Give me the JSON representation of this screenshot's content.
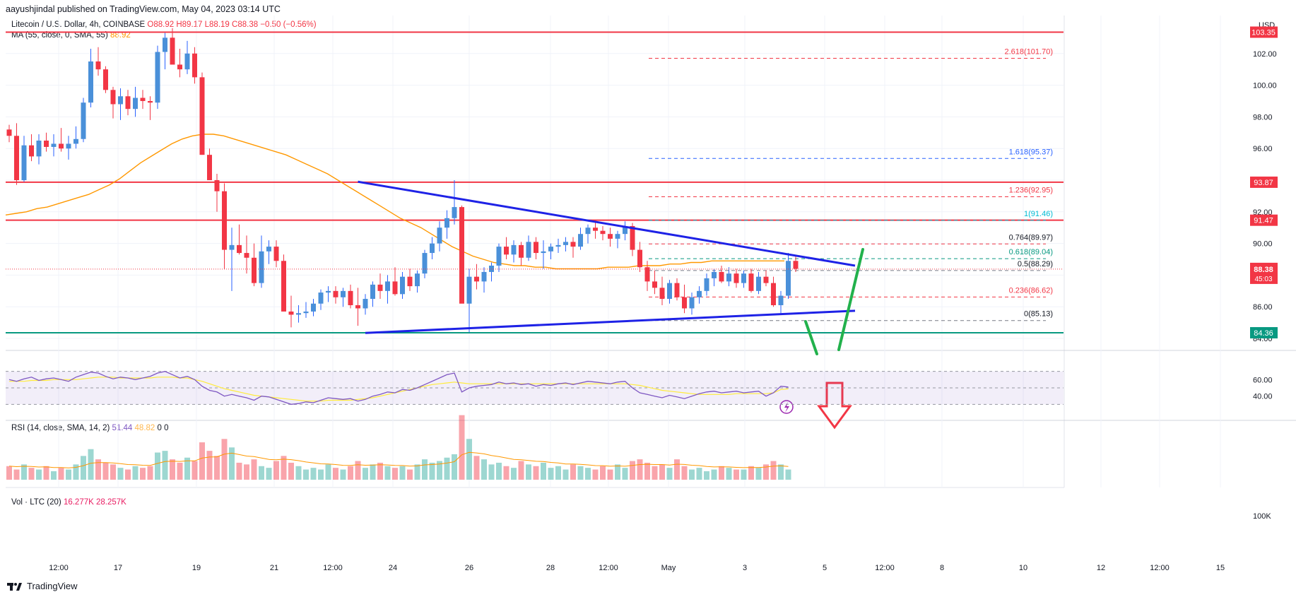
{
  "header": {
    "publisher_line": "aayushjindal published on TradingView.com, May 04, 2023 03:14 UTC"
  },
  "symbol": {
    "title": "Litecoin / U.S. Dollar, 4h, COINBASE",
    "open": "O88.92",
    "high": "H89.17",
    "low": "L88.19",
    "close": "C88.38",
    "change": "−0.50 (−0.56%)",
    "ma_label": "MA (55, close, 0, SMA, 55)",
    "ma_value": "88.92",
    "currency": "USD"
  },
  "rsi_legend": {
    "label": "RSI (14, close, SMA, 14, 2)",
    "value": "51.44",
    "ma_value": "48.82",
    "extra1": "0",
    "extra2": "0"
  },
  "vol_legend": {
    "label": "Vol · LTC (20)",
    "value": "16.277K",
    "ma_value": "28.257K"
  },
  "footer": {
    "brand": "TradingView"
  },
  "colors": {
    "up": "#26a69a",
    "up_candle": "#2962ff",
    "down": "#f23645",
    "ma": "#ff9800",
    "trend": "#1e22e6",
    "support": "#089981",
    "resistance": "#f23645",
    "rsi": "#7e57c2",
    "arrow_green": "#22b14c"
  },
  "chart_data": {
    "type": "candlestick",
    "price_axis": {
      "ticks": [
        102,
        100,
        98,
        96,
        94,
        92,
        90,
        88,
        86,
        84
      ],
      "tick_labels": [
        "102.00",
        "100.00",
        "98.00",
        "96.00",
        "94.00",
        "92.00",
        "90.00",
        "88.00",
        "86.00",
        "84.00"
      ],
      "range": [
        83.6,
        104.4
      ]
    },
    "time_axis": {
      "labels": [
        "12:00",
        "17",
        "19",
        "21",
        "12:00",
        "24",
        "26",
        "28",
        "12:00",
        "May",
        "3",
        "5",
        "12:00",
        "8",
        "10",
        "12",
        "12:00",
        "15"
      ]
    },
    "horizontal_levels": [
      {
        "value": 103.35,
        "label": "103.35",
        "kind": "resistance"
      },
      {
        "value": 93.87,
        "label": "93.87",
        "kind": "resistance"
      },
      {
        "value": 91.47,
        "label": "91.47",
        "kind": "resistance"
      },
      {
        "value": 84.36,
        "label": "84.36",
        "kind": "support"
      }
    ],
    "current_price": {
      "value": 88.38,
      "label": "88.38",
      "countdown": "45:03"
    },
    "fibonacci": [
      {
        "ratio": "2.618",
        "value": 101.7,
        "label": "2.618(101.70)"
      },
      {
        "ratio": "1.618",
        "value": 95.37,
        "label": "1.618(95.37)"
      },
      {
        "ratio": "1.236",
        "value": 92.95,
        "label": "1.236(92.95)"
      },
      {
        "ratio": "1",
        "value": 91.46,
        "label": "1(91.46)"
      },
      {
        "ratio": "0.764",
        "value": 89.97,
        "label": "0.764(89.97)"
      },
      {
        "ratio": "0.618",
        "value": 89.04,
        "label": "0.618(89.04)"
      },
      {
        "ratio": "0.5",
        "value": 88.29,
        "label": "0.5(88.29)"
      },
      {
        "ratio": "0.236",
        "value": 86.62,
        "label": "0.236(86.62)"
      },
      {
        "ratio": "0",
        "value": 85.13,
        "label": "0(85.13)"
      }
    ],
    "trendlines": [
      {
        "name": "upper",
        "from": [
          47,
          93.9
        ],
        "to": [
          114,
          88.6
        ]
      },
      {
        "name": "lower",
        "from": [
          48,
          84.35
        ],
        "to": [
          114,
          85.75
        ]
      }
    ],
    "candles_ohlc": [
      [
        97.2,
        97.5,
        96.4,
        96.8
      ],
      [
        96.8,
        97.6,
        93.7,
        94.0
      ],
      [
        94.0,
        96.8,
        93.9,
        96.2
      ],
      [
        96.2,
        96.9,
        95.2,
        95.5
      ],
      [
        95.5,
        96.9,
        95.0,
        96.5
      ],
      [
        96.5,
        97.0,
        95.8,
        96.1
      ],
      [
        96.1,
        96.9,
        95.5,
        96.3
      ],
      [
        96.3,
        97.3,
        95.8,
        96.0
      ],
      [
        96.0,
        96.8,
        95.3,
        96.3
      ],
      [
        96.3,
        97.4,
        96.0,
        96.6
      ],
      [
        96.6,
        99.2,
        96.4,
        98.9
      ],
      [
        98.9,
        102.3,
        98.6,
        101.5
      ],
      [
        101.5,
        102.4,
        100.6,
        101.0
      ],
      [
        101.0,
        101.2,
        99.5,
        99.7
      ],
      [
        99.7,
        99.9,
        97.9,
        98.8
      ],
      [
        98.8,
        99.8,
        97.8,
        99.3
      ],
      [
        99.3,
        99.7,
        98.1,
        98.5
      ],
      [
        98.5,
        99.9,
        98.0,
        99.2
      ],
      [
        99.2,
        99.7,
        98.5,
        99.0
      ],
      [
        99.0,
        99.3,
        97.8,
        98.9
      ],
      [
        98.9,
        102.5,
        98.5,
        102.1
      ],
      [
        102.1,
        103.3,
        101.0,
        103.0
      ],
      [
        103.0,
        103.6,
        101.5,
        101.3
      ],
      [
        101.3,
        102.3,
        100.5,
        101.0
      ],
      [
        101.0,
        102.8,
        100.7,
        102.0
      ],
      [
        102.0,
        102.4,
        100.1,
        100.5
      ],
      [
        100.5,
        100.8,
        95.6,
        95.6
      ],
      [
        95.6,
        96.0,
        94.1,
        94.0
      ],
      [
        94.0,
        94.4,
        92.0,
        93.3
      ],
      [
        93.3,
        93.8,
        88.4,
        89.6
      ],
      [
        89.6,
        91.0,
        87.0,
        89.9
      ],
      [
        89.9,
        91.2,
        89.3,
        89.4
      ],
      [
        89.4,
        90.5,
        88.1,
        89.1
      ],
      [
        89.1,
        90.0,
        87.3,
        87.5
      ],
      [
        87.5,
        90.5,
        87.2,
        89.5
      ],
      [
        89.5,
        90.2,
        88.7,
        89.8
      ],
      [
        89.8,
        90.2,
        88.5,
        88.9
      ],
      [
        88.9,
        89.3,
        86.5,
        85.7
      ],
      [
        85.7,
        86.7,
        84.7,
        85.5
      ],
      [
        85.5,
        86.1,
        85.0,
        85.6
      ],
      [
        85.6,
        86.3,
        85.3,
        85.7
      ],
      [
        85.7,
        86.5,
        85.4,
        86.2
      ],
      [
        86.2,
        87.1,
        85.8,
        86.9
      ],
      [
        86.9,
        87.3,
        86.3,
        87.0
      ],
      [
        87.0,
        87.3,
        86.2,
        86.6
      ],
      [
        86.6,
        87.2,
        86.0,
        87.0
      ],
      [
        87.0,
        87.4,
        85.9,
        86.1
      ],
      [
        86.1,
        87.2,
        84.8,
        85.9
      ],
      [
        85.9,
        86.8,
        85.5,
        86.5
      ],
      [
        86.5,
        87.6,
        86.0,
        87.4
      ],
      [
        87.4,
        88.1,
        86.5,
        87.0
      ],
      [
        87.0,
        88.0,
        86.2,
        87.6
      ],
      [
        87.6,
        88.5,
        86.7,
        86.8
      ],
      [
        86.8,
        88.2,
        86.5,
        87.9
      ],
      [
        87.9,
        88.4,
        87.0,
        87.3
      ],
      [
        87.3,
        88.3,
        86.9,
        88.1
      ],
      [
        88.1,
        89.6,
        87.8,
        89.4
      ],
      [
        89.4,
        90.4,
        89.0,
        90.0
      ],
      [
        90.0,
        91.4,
        89.5,
        91.0
      ],
      [
        91.0,
        92.1,
        90.3,
        91.6
      ],
      [
        91.6,
        94.0,
        91.2,
        92.3
      ],
      [
        92.3,
        92.4,
        86.3,
        86.2
      ],
      [
        86.2,
        88.4,
        84.4,
        87.9
      ],
      [
        87.9,
        88.7,
        87.1,
        87.6
      ],
      [
        87.6,
        88.5,
        86.9,
        88.2
      ],
      [
        88.2,
        88.8,
        87.6,
        88.6
      ],
      [
        88.6,
        90.0,
        88.2,
        89.8
      ],
      [
        89.8,
        90.4,
        89.0,
        89.3
      ],
      [
        89.3,
        90.2,
        88.8,
        89.9
      ],
      [
        89.9,
        90.1,
        88.6,
        89.1
      ],
      [
        89.1,
        90.5,
        88.9,
        90.1
      ],
      [
        90.1,
        90.4,
        89.0,
        89.4
      ],
      [
        89.4,
        90.2,
        88.4,
        89.5
      ],
      [
        89.5,
        90.0,
        89.0,
        89.8
      ],
      [
        89.8,
        90.3,
        89.4,
        89.9
      ],
      [
        89.9,
        90.4,
        89.5,
        90.1
      ],
      [
        90.1,
        90.4,
        89.1,
        89.8
      ],
      [
        89.8,
        91.0,
        89.6,
        90.6
      ],
      [
        90.6,
        91.2,
        90.0,
        91.0
      ],
      [
        91.0,
        91.5,
        90.3,
        90.8
      ],
      [
        90.8,
        91.1,
        90.2,
        90.6
      ],
      [
        90.6,
        91.0,
        89.8,
        90.3
      ],
      [
        90.3,
        90.8,
        89.7,
        90.6
      ],
      [
        90.6,
        91.4,
        90.2,
        91.1
      ],
      [
        91.1,
        91.3,
        89.2,
        89.6
      ],
      [
        89.6,
        90.1,
        88.2,
        88.5
      ],
      [
        88.5,
        88.9,
        87.0,
        87.6
      ],
      [
        87.6,
        88.3,
        86.8,
        87.2
      ],
      [
        87.2,
        87.9,
        86.1,
        86.5
      ],
      [
        86.5,
        87.7,
        86.2,
        87.5
      ],
      [
        87.5,
        87.8,
        86.4,
        86.6
      ],
      [
        86.6,
        87.4,
        85.6,
        85.9
      ],
      [
        85.9,
        86.9,
        85.5,
        86.6
      ],
      [
        86.6,
        87.3,
        86.2,
        87.0
      ],
      [
        87.0,
        88.1,
        86.7,
        87.8
      ],
      [
        87.8,
        88.4,
        87.3,
        88.2
      ],
      [
        88.2,
        88.6,
        87.5,
        87.6
      ],
      [
        87.6,
        88.5,
        87.3,
        88.1
      ],
      [
        88.1,
        88.4,
        87.2,
        87.5
      ],
      [
        87.5,
        88.3,
        87.2,
        88.1
      ],
      [
        88.1,
        88.4,
        86.9,
        87.0
      ],
      [
        87.0,
        88.2,
        86.8,
        87.9
      ],
      [
        87.9,
        88.3,
        87.3,
        87.5
      ],
      [
        87.5,
        87.9,
        86.0,
        86.1
      ],
      [
        86.1,
        87.0,
        85.6,
        86.7
      ],
      [
        86.7,
        89.4,
        86.5,
        88.9
      ],
      [
        88.9,
        89.2,
        88.2,
        88.4
      ]
    ],
    "ma55": [
      91.8,
      91.9,
      92.0,
      92.2,
      92.3,
      92.5,
      92.7,
      92.9,
      93.1,
      93.4,
      93.7,
      94.1,
      94.6,
      95.1,
      95.5,
      95.9,
      96.3,
      96.6,
      96.8,
      96.9,
      96.9,
      96.8,
      96.6,
      96.4,
      96.2,
      96.0,
      95.8,
      95.6,
      95.3,
      95.0,
      94.7,
      94.4,
      94.0,
      93.6,
      93.2,
      92.8,
      92.4,
      92.0,
      91.6,
      91.3,
      91.0,
      90.6,
      90.2,
      89.8,
      89.5,
      89.2,
      89.0,
      88.8,
      88.7,
      88.6,
      88.6,
      88.5,
      88.5,
      88.4,
      88.4,
      88.4,
      88.4,
      88.4,
      88.5,
      88.5,
      88.5,
      88.6,
      88.6,
      88.6,
      88.7,
      88.7,
      88.8,
      88.8,
      88.9,
      88.9,
      88.9,
      88.9,
      88.9,
      88.9,
      88.9,
      88.9
    ],
    "rsi": [
      60,
      58,
      61,
      63,
      59,
      61,
      62,
      60,
      58,
      63,
      66,
      69,
      68,
      64,
      61,
      63,
      62,
      60,
      62,
      64,
      68,
      70,
      66,
      62,
      64,
      60,
      52,
      47,
      45,
      40,
      42,
      40,
      38,
      35,
      40,
      39,
      36,
      33,
      30,
      31,
      33,
      32,
      35,
      38,
      37,
      36,
      37,
      34,
      36,
      40,
      42,
      45,
      44,
      48,
      47,
      50,
      54,
      58,
      62,
      66,
      68,
      45,
      50,
      52,
      53,
      54,
      57,
      55,
      56,
      54,
      55,
      52,
      54,
      53,
      55,
      56,
      54,
      56,
      58,
      57,
      56,
      55,
      57,
      58,
      50,
      44,
      42,
      40,
      38,
      41,
      39,
      37,
      40,
      43,
      45,
      46,
      44,
      45,
      46,
      44,
      45,
      46,
      40,
      44,
      52,
      51
    ],
    "rsi_ma": [
      58,
      58,
      58,
      59,
      59,
      59,
      60,
      60,
      60,
      60,
      61,
      62,
      63,
      63,
      63,
      62,
      62,
      62,
      62,
      62,
      63,
      63,
      63,
      62,
      62,
      60,
      58,
      55,
      52,
      49,
      47,
      45,
      43,
      41,
      40,
      39,
      38,
      37,
      36,
      35,
      34,
      34,
      34,
      35,
      35,
      35,
      35,
      36,
      37,
      38,
      40,
      42,
      44,
      46,
      48,
      50,
      52,
      54,
      55,
      56,
      57,
      56,
      55,
      55,
      55,
      55,
      55,
      55,
      55,
      55,
      55,
      55,
      55,
      55,
      55,
      55,
      55,
      55,
      55,
      55,
      55,
      55,
      55,
      55,
      54,
      53,
      51,
      49,
      47,
      46,
      45,
      44,
      43,
      42,
      42,
      42,
      42,
      42,
      43,
      43,
      43,
      43,
      43,
      44,
      48,
      48.8
    ],
    "volume": [
      8,
      6,
      9,
      7,
      6,
      8,
      5,
      7,
      6,
      9,
      14,
      18,
      12,
      10,
      9,
      7,
      6,
      8,
      7,
      8,
      16,
      17,
      12,
      10,
      13,
      11,
      22,
      17,
      14,
      24,
      19,
      10,
      9,
      12,
      8,
      7,
      11,
      14,
      10,
      8,
      6,
      7,
      6,
      9,
      7,
      6,
      8,
      11,
      7,
      9,
      10,
      8,
      7,
      8,
      6,
      9,
      12,
      10,
      11,
      13,
      15,
      38,
      24,
      14,
      12,
      9,
      10,
      8,
      7,
      11,
      9,
      8,
      10,
      7,
      8,
      6,
      9,
      8,
      7,
      6,
      8,
      6,
      9,
      7,
      11,
      12,
      10,
      8,
      9,
      7,
      12,
      8,
      6,
      7,
      5,
      6,
      8,
      7,
      6,
      6,
      8,
      7,
      9,
      11,
      9,
      6
    ]
  }
}
